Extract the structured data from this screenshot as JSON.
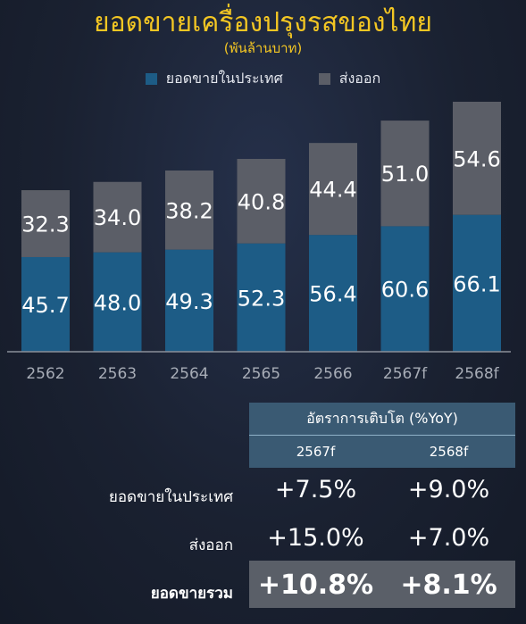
{
  "header": {
    "title": "ยอดขายเครื่องปรุงรสของไทย",
    "subtitle": "(พันล้านบาท)"
  },
  "colors": {
    "domestic": "#1d5c86",
    "export": "#5b5e67",
    "title": "#f3c623",
    "axis": "#a7acb6"
  },
  "chart_data": {
    "type": "bar",
    "stacked": true,
    "categories": [
      "2562",
      "2563",
      "2564",
      "2565",
      "2566",
      "2567f",
      "2568f"
    ],
    "series": [
      {
        "name": "ยอดขายในประเทศ",
        "values": [
          45.7,
          48.0,
          49.3,
          52.3,
          56.4,
          60.6,
          66.1
        ]
      },
      {
        "name": "ส่งออก",
        "values": [
          32.3,
          34.0,
          38.2,
          40.8,
          44.4,
          51.0,
          54.6
        ]
      }
    ],
    "value_labels": {
      "domestic": [
        "45.7",
        "48.0",
        "49.3",
        "52.3",
        "56.4",
        "60.6",
        "66.1"
      ],
      "export": [
        "32.3",
        "34.0",
        "38.2",
        "40.8",
        "44.4",
        "51.0",
        "54.6"
      ]
    },
    "ylim": [
      0,
      125
    ],
    "legend_position": "top-center"
  },
  "growth_table": {
    "header": "อัตราการเติบโต (%YoY)",
    "years": [
      "2567f",
      "2568f"
    ],
    "rows": [
      {
        "label": "ยอดขายในประเทศ",
        "values": [
          "+7.5%",
          "+9.0%"
        ]
      },
      {
        "label": "ส่งออก",
        "values": [
          "+15.0%",
          "+7.0%"
        ]
      },
      {
        "label": "ยอดขายรวม",
        "values": [
          "+10.8%",
          "+8.1%"
        ]
      }
    ]
  }
}
